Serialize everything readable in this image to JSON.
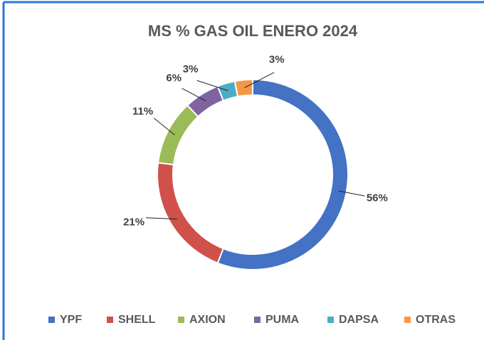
{
  "chart_data": {
    "type": "donut",
    "title": "MS % GAS OIL  ENERO  2024",
    "categories": [
      "YPF",
      "SHELL",
      "AXION",
      "PUMA",
      "DAPSA",
      "OTRAS"
    ],
    "values": [
      56,
      21,
      11,
      6,
      3,
      3
    ],
    "value_labels": [
      "56%",
      "21%",
      "11%",
      "6%",
      "3%",
      "3%"
    ],
    "colors": [
      "#4472c4",
      "#d0504b",
      "#9bbb59",
      "#8064a2",
      "#4bacc6",
      "#f79646"
    ],
    "legend": "bottom"
  }
}
